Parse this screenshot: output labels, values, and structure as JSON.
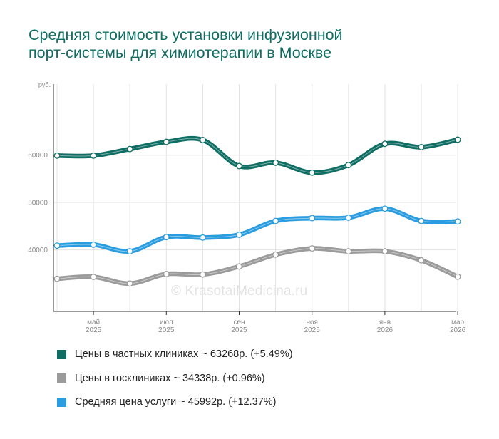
{
  "title_line1": "Средняя стоимость установки инфузионной",
  "title_line2": "порт-системы для химиотерапии в Москве",
  "watermark": "© KrasotaiMedicina.ru",
  "chart_data": {
    "type": "line",
    "y_unit": "руб.",
    "ylim": [
      27000,
      75000
    ],
    "yticks": [
      40000,
      50000,
      60000
    ],
    "ytick_labels": [
      "40000",
      "50000",
      "60000"
    ],
    "x_count": 12,
    "xticks": [
      {
        "index": 1,
        "month": "май",
        "year": "2025"
      },
      {
        "index": 3,
        "month": "июл",
        "year": "2025"
      },
      {
        "index": 5,
        "month": "сен",
        "year": "2025"
      },
      {
        "index": 7,
        "month": "ноя",
        "year": "2025"
      },
      {
        "index": 9,
        "month": "янв",
        "year": "2026"
      },
      {
        "index": 11,
        "month": "мар",
        "year": "2026"
      }
    ],
    "series": [
      {
        "name": "Средняя цена услуги",
        "color": "#2a9de0",
        "values": [
          40900,
          41100,
          39700,
          42700,
          42600,
          43200,
          46100,
          46700,
          46800,
          48700,
          46100,
          45992
        ]
      },
      {
        "name": "Цены в госклиниках",
        "color": "#9b9b9b",
        "values": [
          33900,
          34300,
          32900,
          34900,
          34800,
          36500,
          39000,
          40300,
          39700,
          39700,
          37800,
          34338
        ]
      },
      {
        "name": "Цены в частных клиниках",
        "color": "#0f6e63",
        "values": [
          59900,
          59900,
          61300,
          62800,
          63200,
          57700,
          58400,
          56300,
          57900,
          62400,
          61700,
          63268
        ]
      }
    ]
  },
  "legend": [
    {
      "label": "Цены в частных клиниках ~ 63268р. (+5.49%)",
      "color": "#0f6e63"
    },
    {
      "label": "Цены в госклиниках ~ 34338р. (+0.96%)",
      "color": "#9b9b9b"
    },
    {
      "label": "Средняя цена услуги ~ 45992р. (+12.37%)",
      "color": "#2a9de0"
    }
  ]
}
